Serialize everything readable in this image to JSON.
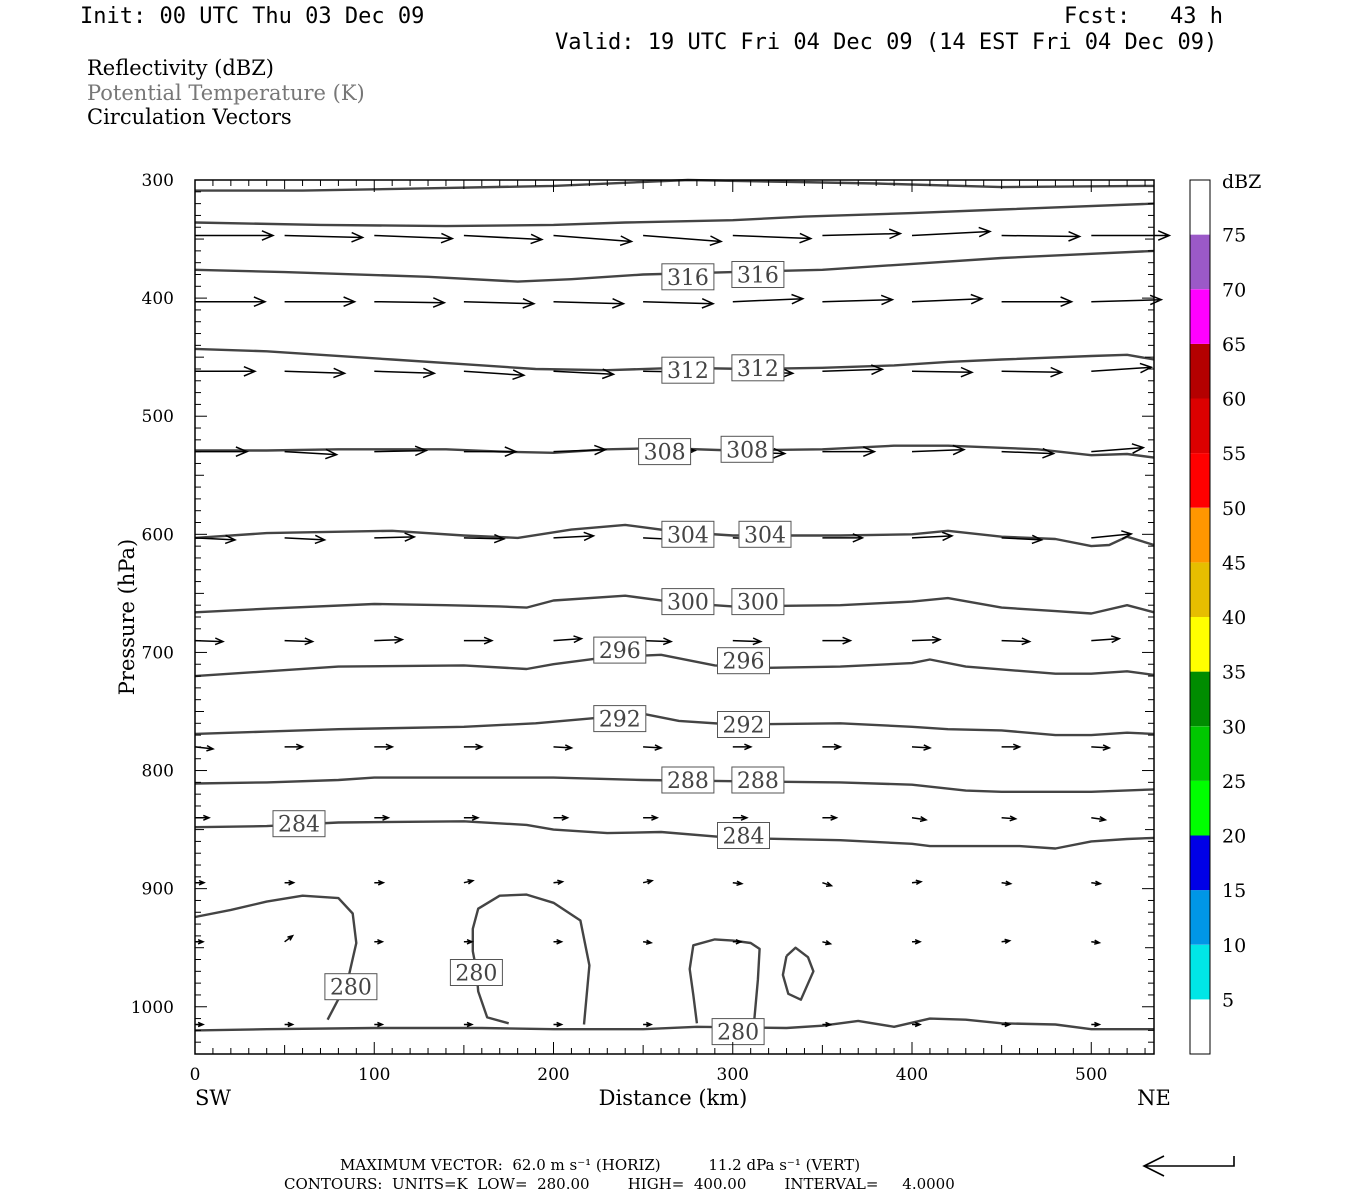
{
  "header": {
    "init": "Init: 00 UTC Thu 03 Dec 09",
    "fcst": "Fcst:   43 h",
    "valid": "Valid: 19 UTC Fri 04 Dec 09 (14 EST Fri 04 Dec 09)"
  },
  "fields": [
    {
      "label": "Reflectivity (dBZ)",
      "color": "#000000"
    },
    {
      "label": "Potential Temperature (K)",
      "color": "#777777"
    },
    {
      "label": "Circulation Vectors",
      "color": "#000000"
    }
  ],
  "footer": {
    "max_vector": "MAXIMUM VECTOR:  62.0 m s⁻¹ (HORIZ)          11.2 dPa s⁻¹ (VERT)",
    "contours": "CONTOURS:  UNITS=K  LOW=  280.00        HIGH=  400.00        INTERVAL=     4.0000"
  },
  "chart_data": {
    "type": "cross-section",
    "xlabel": "Distance (km)",
    "ylabel": "Pressure (hPa)",
    "xlim": [
      0,
      535
    ],
    "ylim": [
      1040,
      300
    ],
    "x_ticks": [
      "0",
      "100",
      "200",
      "300",
      "400",
      "500"
    ],
    "y_ticks": [
      "300",
      "400",
      "500",
      "600",
      "700",
      "800",
      "900",
      "1000"
    ],
    "x_end_labels": {
      "left": "SW",
      "right": "NE"
    },
    "colorbar": {
      "title": "dBZ",
      "labels": [
        "5",
        "10",
        "15",
        "20",
        "25",
        "30",
        "35",
        "40",
        "45",
        "50",
        "55",
        "60",
        "65",
        "70",
        "75"
      ],
      "colors": [
        "#ffffff",
        "#00e6e6",
        "#0096e6",
        "#0000e6",
        "#00ff00",
        "#00c800",
        "#008c00",
        "#ffff00",
        "#e6be00",
        "#ff9600",
        "#ff0000",
        "#dc0000",
        "#b40000",
        "#ff00ff",
        "#9b59c8",
        "#ffffff"
      ]
    },
    "contour_color": "#444444",
    "theta_contours": [
      {
        "level": 280,
        "labels": [
          "280",
          "280",
          "280"
        ],
        "label_at": [
          [
            87,
            983
          ],
          [
            157,
            971
          ],
          [
            303,
            1021
          ]
        ]
      },
      {
        "level": 284,
        "labels": [
          "284",
          "284"
        ],
        "label_at": [
          [
            58,
            845
          ],
          [
            306,
            855
          ]
        ]
      },
      {
        "level": 288,
        "labels": [
          "288",
          "288"
        ],
        "label_at": [
          [
            275,
            808
          ],
          [
            314,
            808
          ]
        ]
      },
      {
        "level": 292,
        "labels": [
          "292",
          "292"
        ],
        "label_at": [
          [
            237,
            756
          ],
          [
            306,
            761
          ]
        ]
      },
      {
        "level": 296,
        "labels": [
          "296",
          "296"
        ],
        "label_at": [
          [
            237,
            698
          ],
          [
            306,
            707
          ]
        ]
      },
      {
        "level": 300,
        "labels": [
          "300",
          "300"
        ],
        "label_at": [
          [
            275,
            657
          ],
          [
            314,
            657
          ]
        ]
      },
      {
        "level": 304,
        "labels": [
          "304",
          "304"
        ],
        "label_at": [
          [
            275,
            600
          ],
          [
            318,
            600
          ]
        ]
      },
      {
        "level": 308,
        "labels": [
          "308",
          "308"
        ],
        "label_at": [
          [
            262,
            530
          ],
          [
            308,
            528
          ]
        ]
      },
      {
        "level": 312,
        "labels": [
          "312",
          "312"
        ],
        "label_at": [
          [
            275,
            461
          ],
          [
            314,
            459
          ]
        ]
      },
      {
        "level": 316,
        "labels": [
          "316",
          "316"
        ],
        "label_at": [
          [
            275,
            382
          ],
          [
            314,
            380
          ]
        ]
      }
    ],
    "max_vector_key": "62.0 m s-1 horiz, 11.2 dPa s-1 vert"
  }
}
